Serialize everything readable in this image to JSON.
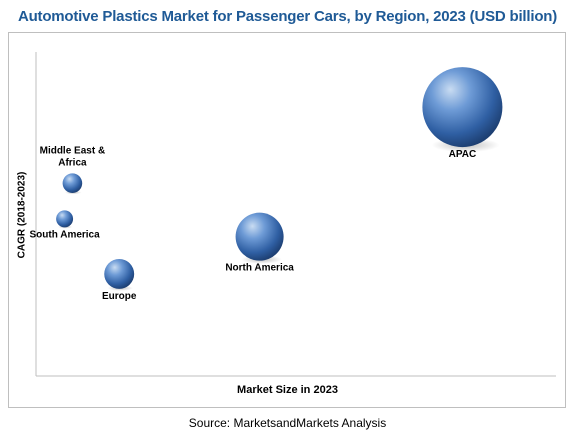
{
  "chart_data": {
    "type": "bubble",
    "title": "Automotive Plastics Market for Passenger Cars, by Region, 2023 (USD billion)",
    "xlabel": "Market Size in 2023",
    "ylabel": "CAGR (2018-2023)",
    "source": "Source: MarketsandMarkets Analysis",
    "grid": false,
    "legend": "none",
    "bubble_color": "#3f74b7",
    "points": [
      {
        "name": "APAC",
        "x": 8.2,
        "y": 8.3,
        "size": 100,
        "label_lines": [
          "APAC"
        ],
        "label_pos": "below"
      },
      {
        "name": "North America",
        "x": 4.3,
        "y": 4.3,
        "size": 36,
        "label_lines": [
          "North America"
        ],
        "label_pos": "below"
      },
      {
        "name": "Middle East & Africa",
        "x": 0.7,
        "y": 5.95,
        "size": 6,
        "label_lines": [
          "Middle East &",
          "Africa"
        ],
        "label_pos": "above"
      },
      {
        "name": "South America",
        "x": 0.55,
        "y": 4.85,
        "size": 4.5,
        "label_lines": [
          "South America"
        ],
        "label_pos": "below"
      },
      {
        "name": "Europe",
        "x": 1.6,
        "y": 3.15,
        "size": 14,
        "label_lines": [
          "Europe"
        ],
        "label_pos": "below"
      }
    ]
  }
}
